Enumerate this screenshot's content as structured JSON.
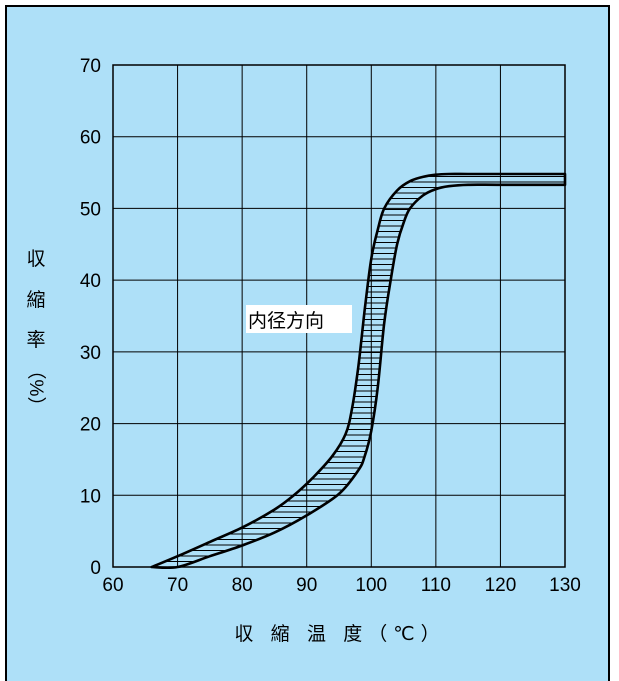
{
  "chart_data": {
    "type": "area",
    "title": "",
    "xlabel": "収 縮 温 度（℃）",
    "ylabel_chars": [
      "収",
      "縮",
      "率",
      "（%）"
    ],
    "xlim": [
      60,
      130
    ],
    "ylim": [
      0,
      70
    ],
    "xticks": [
      60,
      70,
      80,
      90,
      100,
      110,
      120,
      130
    ],
    "yticks": [
      0,
      10,
      20,
      30,
      40,
      50,
      60,
      70
    ],
    "grid": true,
    "annotation": "内径方向",
    "series": [
      {
        "role": "upper-bound",
        "x": [
          66,
          70,
          75,
          80,
          85,
          88,
          91,
          94,
          96,
          97,
          98,
          99,
          100,
          101,
          102,
          104,
          106,
          108,
          110,
          112,
          115,
          120,
          130
        ],
        "y": [
          0,
          1.5,
          3.5,
          5.5,
          8,
          10,
          12.5,
          15.5,
          18.5,
          22,
          28,
          36,
          43,
          47,
          50,
          52.5,
          53.8,
          54.4,
          54.7,
          54.8,
          54.8,
          54.8,
          54.8
        ]
      },
      {
        "role": "lower-bound",
        "x": [
          66,
          70,
          75,
          80,
          85,
          90,
          95,
          98,
          99,
          100,
          101,
          102,
          103,
          104,
          105,
          106,
          108,
          110,
          112,
          115,
          120,
          130
        ],
        "y": [
          0,
          0,
          1.5,
          3.0,
          4.8,
          7.2,
          10.2,
          13.5,
          15.5,
          19,
          25,
          34,
          40,
          45,
          48,
          50,
          51.8,
          52.7,
          53.1,
          53.3,
          53.3,
          53.3
        ]
      }
    ]
  }
}
